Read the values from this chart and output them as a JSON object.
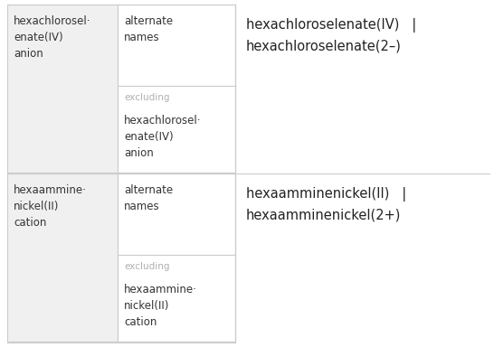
{
  "col1_texts": [
    "hexachlorosel·\nenate(IV)\nanion",
    "hexaammine·\nnickel(II)\ncation"
  ],
  "col2_top_texts": [
    "alternate\nnames",
    "alternate\nnames"
  ],
  "col2_bot_labels": [
    "excluding",
    "excluding"
  ],
  "col2_bot_values": [
    "hexachlorosel·\nenate(IV)\nanion",
    "hexaammine·\nnickel(II)\ncation"
  ],
  "col3_texts": [
    "hexachloroselenate(IV)   |\nhexachloroselenate(2–)",
    "hexaamminenickel(II)   |\nhexaamminenickel(2+)"
  ],
  "text_color": "#333333",
  "excluding_color": "#b0b0b0",
  "border_color": "#cccccc",
  "bg_color": "#ffffff",
  "cell1_bg": "#f0f0f0",
  "font_size": 8.5,
  "col3_font_size": 10.5,
  "excl_font_size": 7.5
}
